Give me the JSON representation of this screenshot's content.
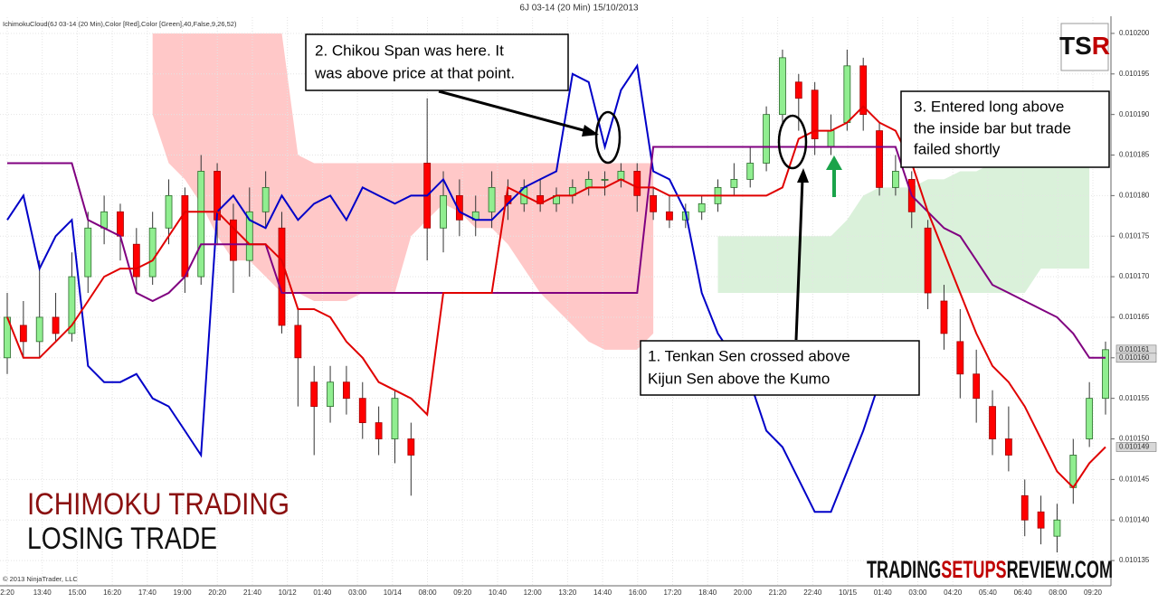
{
  "chart_data": {
    "type": "candlestick",
    "title": "6J 03-14 (20 Min)  15/10/2013",
    "indicator_label": "IchimokuCloud(6J 03-14 (20 Min),Color [Red],Color [Green],40,False,9,26,52)",
    "copyright": "© 2013 NinjaTrader, LLC",
    "x_labels": [
      "2:20",
      "13:40",
      "15:00",
      "16:20",
      "17:40",
      "19:00",
      "20:20",
      "21:40",
      "10/12",
      "01:40",
      "03:00",
      "10/14",
      "08:00",
      "09:20",
      "10:40",
      "12:00",
      "13:20",
      "14:40",
      "16:00",
      "17:20",
      "18:40",
      "20:00",
      "21:20",
      "22:40",
      "10/15",
      "01:40",
      "03:00",
      "04:20",
      "05:40",
      "06:40",
      "08:00",
      "09:20"
    ],
    "open": [
      0.01016,
      0.010164,
      0.010162,
      0.010165,
      0.010163,
      0.01017,
      0.010176,
      0.010178,
      0.010174,
      0.01017,
      0.010176,
      0.01018,
      0.01017,
      0.010183,
      0.010177,
      0.010172,
      0.010178,
      0.010176,
      0.010164,
      0.010157,
      0.010154,
      0.010157,
      0.010155,
      0.010152,
      0.01015,
      0.01015,
      0.010184,
      0.010176,
      0.01018,
      0.010177,
      0.010178,
      0.01018,
      0.010179,
      0.01018,
      0.010179,
      0.01018,
      0.010181,
      0.010182,
      0.010182,
      0.010183,
      0.01018,
      0.010178,
      0.010177,
      0.010178,
      0.010179,
      0.010181,
      0.010182,
      0.010184,
      0.01019,
      0.010194,
      0.010193,
      0.010186,
      0.010189,
      0.010196,
      0.010188,
      0.010181,
      0.010182,
      0.010176,
      0.010167,
      0.010162,
      0.010158,
      0.010154,
      0.01015,
      0.010143,
      0.010141,
      0.010138,
      0.010144,
      0.01015,
      0.010155
    ],
    "high": [
      0.010168,
      0.010167,
      0.010172,
      0.010168,
      0.010173,
      0.010178,
      0.01018,
      0.010179,
      0.010176,
      0.010178,
      0.010182,
      0.010181,
      0.010185,
      0.010184,
      0.010179,
      0.010181,
      0.010183,
      0.010178,
      0.010166,
      0.010159,
      0.010159,
      0.010159,
      0.010157,
      0.010154,
      0.010156,
      0.010152,
      0.010192,
      0.010183,
      0.010182,
      0.01018,
      0.010183,
      0.010182,
      0.010182,
      0.010182,
      0.010181,
      0.010182,
      0.010183,
      0.010183,
      0.010184,
      0.010184,
      0.010181,
      0.01018,
      0.010179,
      0.01018,
      0.010182,
      0.010184,
      0.010186,
      0.010191,
      0.010198,
      0.010195,
      0.010194,
      0.01019,
      0.010198,
      0.010197,
      0.010189,
      0.010185,
      0.010183,
      0.010177,
      0.010169,
      0.010166,
      0.010161,
      0.010156,
      0.010154,
      0.010145,
      0.010143,
      0.010142,
      0.01015,
      0.010157,
      0.010162
    ],
    "low": [
      0.010158,
      0.01016,
      0.01016,
      0.010162,
      0.010162,
      0.010168,
      0.010174,
      0.010172,
      0.010168,
      0.010169,
      0.010174,
      0.010168,
      0.010169,
      0.010174,
      0.010168,
      0.01017,
      0.010176,
      0.010163,
      0.010154,
      0.010148,
      0.010152,
      0.010153,
      0.01015,
      0.010148,
      0.010147,
      0.010143,
      0.010172,
      0.010173,
      0.010175,
      0.010175,
      0.010176,
      0.010177,
      0.010178,
      0.010178,
      0.010178,
      0.010179,
      0.01018,
      0.01018,
      0.010181,
      0.010178,
      0.010177,
      0.010176,
      0.010176,
      0.010177,
      0.010178,
      0.01018,
      0.010181,
      0.010183,
      0.010189,
      0.010188,
      0.010185,
      0.010185,
      0.010188,
      0.010188,
      0.01018,
      0.01018,
      0.010176,
      0.010166,
      0.010161,
      0.010155,
      0.010152,
      0.010148,
      0.010146,
      0.010138,
      0.010137,
      0.010136,
      0.010142,
      0.010149,
      0.010153
    ],
    "close": [
      0.010165,
      0.010162,
      0.010165,
      0.010163,
      0.01017,
      0.010176,
      0.010178,
      0.010175,
      0.01017,
      0.010176,
      0.01018,
      0.01017,
      0.010183,
      0.010177,
      0.010172,
      0.010178,
      0.010181,
      0.010164,
      0.01016,
      0.010154,
      0.010157,
      0.010155,
      0.010152,
      0.01015,
      0.010155,
      0.010148,
      0.010176,
      0.01018,
      0.010177,
      0.010178,
      0.010181,
      0.010179,
      0.010181,
      0.010179,
      0.01018,
      0.010181,
      0.010182,
      0.010182,
      0.010183,
      0.01018,
      0.010178,
      0.010177,
      0.010178,
      0.010179,
      0.010181,
      0.010182,
      0.010184,
      0.01019,
      0.010197,
      0.010192,
      0.010187,
      0.010188,
      0.010196,
      0.01019,
      0.010181,
      0.010183,
      0.010178,
      0.010168,
      0.010163,
      0.010158,
      0.010155,
      0.01015,
      0.010148,
      0.01014,
      0.010139,
      0.01014,
      0.010148,
      0.010155,
      0.010161
    ],
    "up_color": "#90ee90",
    "down_color": "#ff0000",
    "clouds": [
      {
        "color": "#ffb6b6",
        "upper": [
          null,
          null,
          null,
          null,
          null,
          null,
          null,
          null,
          null,
          0.0102,
          0.0102,
          0.0102,
          0.0102,
          0.0102,
          0.0102,
          0.0102,
          0.0102,
          0.0102,
          0.010185,
          0.010184,
          0.010184,
          0.010184,
          0.010184,
          0.010184,
          0.010184,
          0.010184,
          0.010184,
          0.010184,
          0.010184,
          0.010184,
          0.010184,
          0.010184,
          0.010184,
          0.010184,
          0.010184,
          0.010184,
          0.010184,
          0.010184,
          0.010184,
          0.010184,
          0.010184,
          null,
          null,
          null,
          null,
          null,
          null,
          null,
          null,
          null,
          null,
          null,
          null,
          null,
          null,
          null,
          null,
          null,
          null,
          null,
          null,
          null,
          null,
          null,
          null,
          null,
          null,
          null,
          null
        ],
        "lower": [
          null,
          null,
          null,
          null,
          null,
          null,
          null,
          null,
          null,
          0.01019,
          0.010184,
          0.010182,
          0.010179,
          0.010175,
          0.010172,
          0.010172,
          0.01017,
          0.010168,
          0.010168,
          0.010167,
          0.010167,
          0.010167,
          0.010168,
          0.010168,
          0.010168,
          0.010175,
          0.010177,
          0.010179,
          0.010178,
          0.010176,
          0.010176,
          0.010174,
          0.010171,
          0.010168,
          0.010166,
          0.010164,
          0.010162,
          0.010161,
          0.010161,
          0.010161,
          0.010163,
          null,
          null,
          null,
          null,
          null,
          null,
          null,
          null,
          null,
          null,
          null,
          null,
          null,
          null,
          null,
          null,
          null,
          null,
          null,
          null,
          null,
          null,
          null,
          null,
          null,
          null,
          null,
          null
        ]
      },
      {
        "color": "#cdeccd",
        "upper": [
          null,
          null,
          null,
          null,
          null,
          null,
          null,
          null,
          null,
          null,
          null,
          null,
          null,
          null,
          null,
          null,
          null,
          null,
          null,
          null,
          null,
          null,
          null,
          null,
          null,
          null,
          null,
          null,
          null,
          null,
          null,
          null,
          null,
          null,
          null,
          null,
          null,
          null,
          null,
          null,
          null,
          null,
          null,
          null,
          0.010175,
          0.010175,
          0.010175,
          0.010175,
          0.010175,
          0.010175,
          0.010175,
          0.010175,
          0.010177,
          0.01018,
          0.010181,
          0.010181,
          0.010181,
          0.010182,
          0.010182,
          0.010183,
          0.010183,
          0.010184,
          0.010184,
          0.010184,
          0.010184,
          0.010184,
          0.010184,
          0.010184,
          null
        ],
        "lower": [
          null,
          null,
          null,
          null,
          null,
          null,
          null,
          null,
          null,
          null,
          null,
          null,
          null,
          null,
          null,
          null,
          null,
          null,
          null,
          null,
          null,
          null,
          null,
          null,
          null,
          null,
          null,
          null,
          null,
          null,
          null,
          null,
          null,
          null,
          null,
          null,
          null,
          null,
          null,
          null,
          null,
          null,
          null,
          null,
          0.010168,
          0.010168,
          0.010168,
          0.010168,
          0.010168,
          0.010168,
          0.010168,
          0.010168,
          0.010168,
          0.010168,
          0.010168,
          0.010168,
          0.010168,
          0.010168,
          0.010168,
          0.010168,
          0.010168,
          0.010168,
          0.010168,
          0.010168,
          0.010171,
          0.010171,
          0.010171,
          0.010171,
          null
        ]
      }
    ],
    "lines": [
      {
        "color": "#0000c8",
        "values": [
          0.010177,
          0.01018,
          0.010171,
          0.010175,
          0.010177,
          0.010159,
          0.010157,
          0.010157,
          0.010158,
          0.010155,
          0.010154,
          0.010151,
          0.010148,
          0.010178,
          0.01018,
          0.010177,
          0.010176,
          0.01018,
          0.010177,
          0.010179,
          0.01018,
          0.010177,
          0.010181,
          0.01018,
          0.010179,
          0.01018,
          0.01018,
          0.010182,
          0.010178,
          0.010177,
          0.010177,
          0.010179,
          0.010181,
          0.010182,
          0.010183,
          0.010195,
          0.010194,
          0.010186,
          0.010193,
          0.010196,
          0.010183,
          0.010182,
          0.010178,
          0.010168,
          0.010163,
          0.01016,
          0.010157,
          0.010151,
          0.010149,
          0.010145,
          0.010141,
          0.010141,
          0.010146,
          0.010151,
          0.010157,
          null,
          null,
          null,
          null,
          null,
          null,
          null,
          null,
          null,
          null,
          null,
          null,
          null,
          null
        ]
      },
      {
        "color": "#800080",
        "values": [
          0.010184,
          0.010184,
          0.010184,
          0.010184,
          0.010184,
          0.010177,
          0.010176,
          0.010175,
          0.010168,
          0.010167,
          0.010168,
          0.01017,
          0.010174,
          0.010174,
          0.010174,
          0.010174,
          0.010174,
          0.010168,
          0.010168,
          0.010168,
          0.010168,
          0.010168,
          0.010168,
          0.010168,
          0.010168,
          0.010168,
          0.010168,
          0.010168,
          0.010168,
          0.010168,
          0.010168,
          0.010168,
          0.010168,
          0.010168,
          0.010168,
          0.010168,
          0.010168,
          0.010168,
          0.010168,
          0.010168,
          0.010186,
          0.010186,
          0.010186,
          0.010186,
          0.010186,
          0.010186,
          0.010186,
          0.010186,
          0.010186,
          0.010186,
          0.010186,
          0.010186,
          0.010186,
          0.010186,
          0.010186,
          0.010186,
          0.01018,
          0.010178,
          0.010176,
          0.010175,
          0.010172,
          0.010169,
          0.010168,
          0.010167,
          0.010166,
          0.010165,
          0.010163,
          0.01016,
          0.01016
        ]
      },
      {
        "color": "#e00000",
        "values": [
          0.010165,
          0.01016,
          0.01016,
          0.010162,
          0.010164,
          0.010167,
          0.01017,
          0.010171,
          0.010171,
          0.010172,
          0.010175,
          0.010178,
          0.010178,
          0.010178,
          0.010176,
          0.010174,
          0.010174,
          0.010172,
          0.010166,
          0.010166,
          0.010165,
          0.010162,
          0.01016,
          0.010157,
          0.010156,
          0.010155,
          0.010153,
          0.010168,
          0.010168,
          0.010168,
          0.010168,
          0.010181,
          0.01018,
          0.010179,
          0.01018,
          0.01018,
          0.010181,
          0.010181,
          0.010182,
          0.010181,
          0.010181,
          0.01018,
          0.01018,
          0.01018,
          0.01018,
          0.01018,
          0.01018,
          0.01018,
          0.010181,
          0.010187,
          0.010188,
          0.010188,
          0.010189,
          0.010191,
          0.010189,
          0.010188,
          0.010184,
          0.010178,
          0.010173,
          0.010168,
          0.010163,
          0.010159,
          0.010157,
          0.010154,
          0.01015,
          0.010146,
          0.010144,
          0.010147,
          0.010149
        ]
      }
    ],
    "ylim": [
      0.010132,
      0.010202
    ],
    "yticks": [
      {
        "value": 0.010135,
        "label": "0.010135"
      },
      {
        "value": 0.01014,
        "label": "0.010140"
      },
      {
        "value": 0.010145,
        "label": "0.010145"
      },
      {
        "value": 0.01015,
        "label": "0.010150"
      },
      {
        "value": 0.010155,
        "label": "0.010155"
      },
      {
        "value": 0.01016,
        "label": "0.010160"
      },
      {
        "value": 0.010165,
        "label": "0.010165"
      },
      {
        "value": 0.01017,
        "label": "0.010170"
      },
      {
        "value": 0.010175,
        "label": "0.010175"
      },
      {
        "value": 0.01018,
        "label": "0.010180"
      },
      {
        "value": 0.010185,
        "label": "0.010185"
      },
      {
        "value": 0.01019,
        "label": "0.010190"
      },
      {
        "value": 0.010195,
        "label": "0.010195"
      },
      {
        "value": 0.0102,
        "label": "0.010200"
      }
    ],
    "price_markers": [
      {
        "value": 0.010161,
        "label": "0.010161"
      },
      {
        "value": 0.01016,
        "label": "0.010160"
      },
      {
        "value": 0.010149,
        "label": "0.010149"
      }
    ],
    "grid": true,
    "annotations": [
      [
        "1. Tenkan Sen crossed above",
        "Kijun  Sen above the Kumo"
      ],
      [
        "2. Chikou Span was here. It",
        "was above price at that point."
      ],
      [
        "3. Entered long above",
        "the inside bar but trade",
        "failed shortly"
      ]
    ],
    "headline": [
      "ICHIMOKU TRADING",
      "LOSING TRADE"
    ],
    "logo": [
      "TS",
      "R"
    ],
    "brand": [
      "TRADING",
      "SETUPS",
      "REVIEW.COM"
    ]
  }
}
